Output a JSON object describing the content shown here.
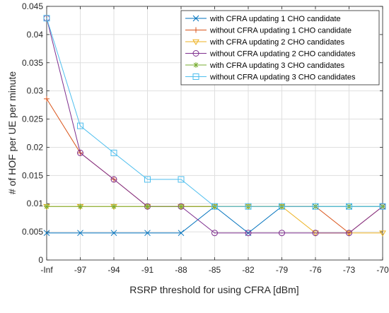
{
  "chart_data": {
    "type": "line",
    "title": "",
    "xlabel": "RSRP threshold for using CFRA [dBm]",
    "ylabel": "# of HOF per UE per minute",
    "categories": [
      "-Inf",
      "-97",
      "-94",
      "-91",
      "-88",
      "-85",
      "-82",
      "-79",
      "-76",
      "-73",
      "-70"
    ],
    "ylim": [
      0,
      0.045
    ],
    "yticks": [
      "0",
      "0.005",
      "0.01",
      "0.015",
      "0.02",
      "0.025",
      "0.03",
      "0.035",
      "0.04",
      "0.045"
    ],
    "grid": true,
    "legend_position": "top-right",
    "series": [
      {
        "name": "with CFRA updating 1 CHO candidate",
        "color": "#0072BD",
        "marker": "x",
        "values": [
          0.0048,
          0.0048,
          0.0048,
          0.0048,
          0.0048,
          0.0095,
          0.0048,
          0.0095,
          0.0095,
          0.0095,
          0.0095
        ]
      },
      {
        "name": "without CFRA updating 1 CHO candidate",
        "color": "#D95319",
        "marker": "+",
        "values": [
          0.0286,
          0.019,
          0.0143,
          0.0095,
          0.0095,
          0.0095,
          0.0095,
          0.0095,
          0.0095,
          0.0048,
          0.0095
        ]
      },
      {
        "name": "with CFRA updating 2 CHO candidates",
        "color": "#EDB120",
        "marker": "triangle-down",
        "values": [
          0.0095,
          0.0095,
          0.0095,
          0.0095,
          0.0095,
          0.0095,
          0.0095,
          0.0095,
          0.0048,
          0.0048,
          0.0048
        ]
      },
      {
        "name": "without CFRA updating 2 CHO candidates",
        "color": "#7E2F8E",
        "marker": "circle",
        "values": [
          0.0429,
          0.019,
          0.0143,
          0.0095,
          0.0095,
          0.0048,
          0.0048,
          0.0048,
          0.0048,
          0.0048,
          0.0095
        ]
      },
      {
        "name": "with CFRA updating 3 CHO candidates",
        "color": "#77AC30",
        "marker": "asterisk",
        "values": [
          0.0095,
          0.0095,
          0.0095,
          0.0095,
          0.0095,
          0.0095,
          0.0095,
          0.0095,
          0.0095,
          0.0095,
          0.0095
        ]
      },
      {
        "name": "without CFRA updating 3 CHO candidates",
        "color": "#4DBEEE",
        "marker": "square",
        "values": [
          0.0429,
          0.0238,
          0.019,
          0.0143,
          0.0143,
          0.0095,
          0.0095,
          0.0095,
          0.0095,
          0.0095,
          0.0095
        ]
      }
    ]
  }
}
